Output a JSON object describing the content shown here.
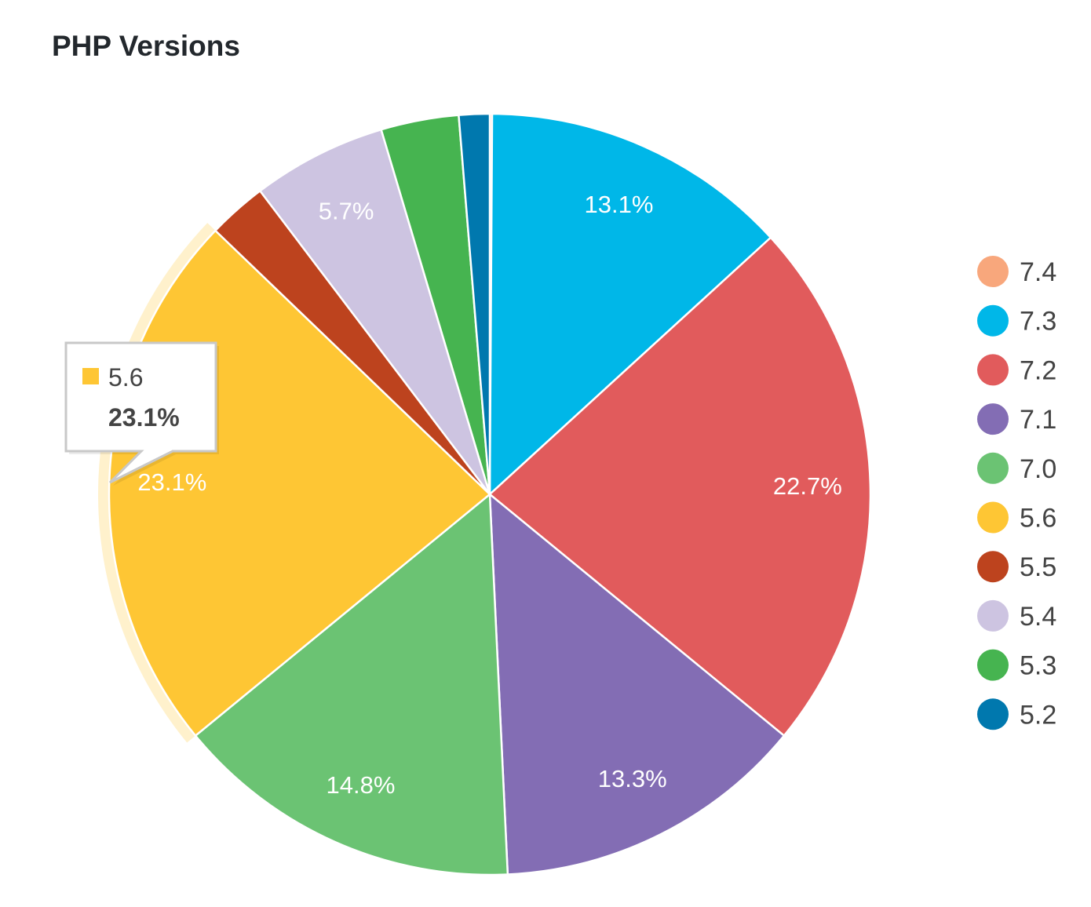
{
  "chart_data": {
    "type": "pie",
    "title": "PHP Versions",
    "legend_position": "right",
    "hovered": "5.6",
    "tooltip": {
      "label": "5.6",
      "value": "23.1%"
    },
    "slices": [
      {
        "name": "7.4",
        "value": 0.1,
        "color": "#f8a77c"
      },
      {
        "name": "7.3",
        "value": 13.1,
        "color": "#00b7e8"
      },
      {
        "name": "7.2",
        "value": 22.7,
        "color": "#e15b5c"
      },
      {
        "name": "7.1",
        "value": 13.3,
        "color": "#836db4"
      },
      {
        "name": "7.0",
        "value": 14.8,
        "color": "#6bc373"
      },
      {
        "name": "5.6",
        "value": 23.1,
        "color": "#fec634"
      },
      {
        "name": "5.5",
        "value": 2.5,
        "color": "#bd431e"
      },
      {
        "name": "5.4",
        "value": 5.7,
        "color": "#cdc4e1"
      },
      {
        "name": "5.3",
        "value": 3.3,
        "color": "#46b450"
      },
      {
        "name": "5.2",
        "value": 1.3,
        "color": "#0078ae"
      }
    ],
    "data_labels": [
      "",
      "13.1%",
      "22.7%",
      "13.3%",
      "14.8%",
      "23.1%",
      "",
      "5.7%",
      "",
      ""
    ]
  }
}
